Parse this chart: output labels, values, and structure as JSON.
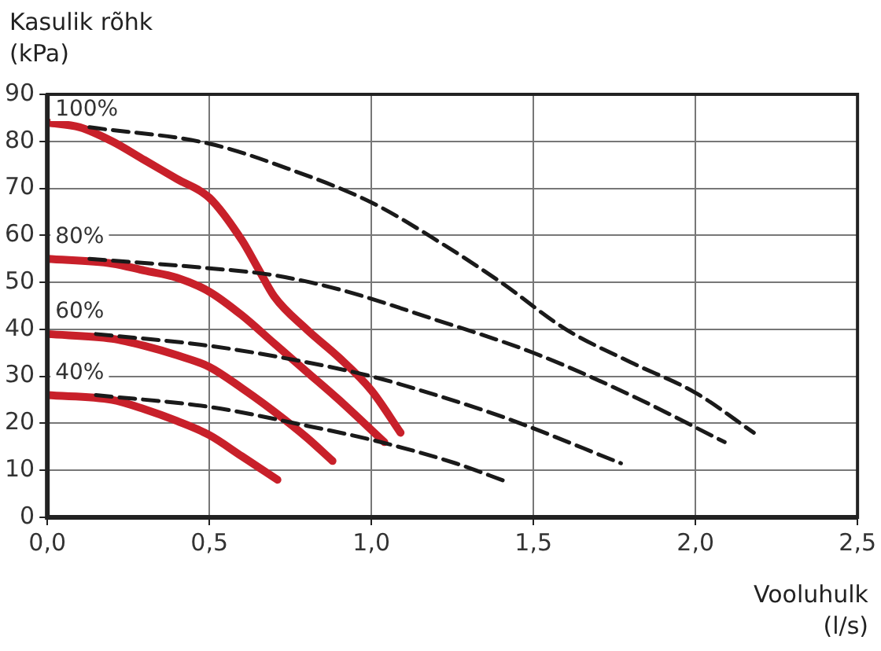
{
  "chart_data": {
    "type": "line",
    "ylabel": "Kasulik rõhk\n(kPa)",
    "xlabel": "Vooluhulk\n(l/s)",
    "xlim": [
      0,
      2.5
    ],
    "xticks": [
      {
        "value": 0,
        "label": "0,0"
      },
      {
        "value": 0.5,
        "label": "0,5"
      },
      {
        "value": 1,
        "label": "1,0"
      },
      {
        "value": 1.5,
        "label": "1,5"
      },
      {
        "value": 2,
        "label": "2,0"
      },
      {
        "value": 2.5,
        "label": "2,5"
      }
    ],
    "ylim": [
      0,
      90
    ],
    "yticks": [
      0,
      10,
      20,
      30,
      40,
      50,
      60,
      70,
      80,
      90
    ],
    "grid": true,
    "marker": "none",
    "annotations": [
      "100%",
      "80%",
      "60%",
      "40%"
    ],
    "series": [
      {
        "color": "#c8202a",
        "line_style": "solid",
        "x": [
          0,
          0.1,
          0.2,
          0.3,
          0.4,
          0.5,
          0.6,
          0.65,
          0.7,
          0.8,
          0.9,
          1.0,
          1.09
        ],
        "values": [
          84,
          83,
          80,
          76,
          72,
          68,
          59,
          53,
          47,
          40,
          34,
          27,
          18
        ]
      },
      {
        "color": "#c8202a",
        "line_style": "solid",
        "x": [
          0,
          0.2,
          0.3,
          0.4,
          0.5,
          0.6,
          0.7,
          0.8,
          0.9,
          1.04
        ],
        "values": [
          55,
          54,
          52.5,
          51,
          48,
          43,
          37,
          31,
          25,
          16
        ]
      },
      {
        "color": "#c8202a",
        "line_style": "solid",
        "x": [
          0,
          0.2,
          0.3,
          0.4,
          0.5,
          0.6,
          0.7,
          0.8,
          0.88
        ],
        "values": [
          39,
          38,
          36.5,
          34.5,
          32,
          27.5,
          22.5,
          17,
          12
        ]
      },
      {
        "color": "#c8202a",
        "line_style": "solid",
        "x": [
          0,
          0.2,
          0.3,
          0.4,
          0.5,
          0.6,
          0.71
        ],
        "values": [
          26,
          25,
          23,
          20.5,
          17.5,
          13,
          8
        ]
      },
      {
        "color": "#1a1a1a",
        "line_style": "dashed",
        "x": [
          0.13,
          0.5,
          0.75,
          1.0,
          1.2,
          1.4,
          1.6,
          1.8,
          2.0,
          2.18
        ],
        "values": [
          83,
          79.5,
          74,
          67,
          59,
          50,
          40,
          33,
          26.5,
          18
        ]
      },
      {
        "color": "#1a1a1a",
        "line_style": "dashed",
        "x": [
          0.13,
          0.5,
          0.7,
          0.9,
          1.2,
          1.5,
          1.8,
          2.09
        ],
        "values": [
          55,
          53,
          51.5,
          48.5,
          42,
          35,
          26,
          16
        ]
      },
      {
        "color": "#1a1a1a",
        "line_style": "dashed",
        "x": [
          0.15,
          0.5,
          0.8,
          1.0,
          1.2,
          1.42,
          1.77
        ],
        "values": [
          39,
          36.5,
          33,
          30,
          26,
          21,
          11.5
        ]
      },
      {
        "color": "#1a1a1a",
        "line_style": "dashed",
        "x": [
          0.15,
          0.5,
          0.8,
          1.0,
          1.26,
          1.42
        ],
        "values": [
          26,
          23.5,
          19.5,
          16.5,
          11.5,
          7.5
        ]
      }
    ]
  }
}
